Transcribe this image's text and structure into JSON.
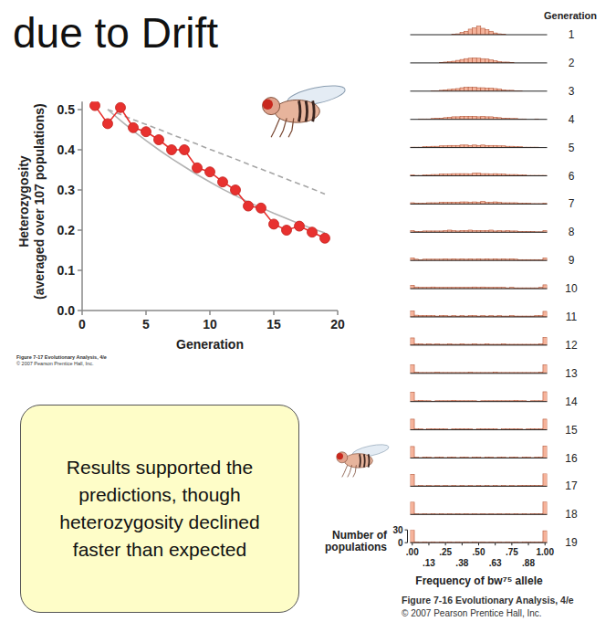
{
  "title": "due to Drift",
  "callout": "Results supported the predictions, though heterozygosity declined faster than expected",
  "chart_data": [
    {
      "type": "line",
      "x_label": "Generation",
      "y_label": [
        "Heterozygosity",
        "(averaged over 107 populations)"
      ],
      "annotations": [
        "Figure 7-17 Evolutionary Analysis, 4/e",
        "© 2007 Pearson Prentice Hall, Inc."
      ],
      "x": [
        1,
        2,
        3,
        4,
        5,
        6,
        7,
        8,
        9,
        10,
        11,
        12,
        13,
        14,
        15,
        16,
        17,
        18,
        19
      ],
      "xlim": [
        0,
        20
      ],
      "xticks": [
        0,
        5,
        10,
        15,
        20
      ],
      "ylim": [
        0,
        0.52
      ],
      "yticks": [
        {
          "value": 0,
          "label": "0.0"
        },
        0.1,
        0.2,
        0.3,
        0.4,
        0.5
      ],
      "series": [
        {
          "color": "#a6a6a6",
          "line_style": "dashed",
          "marker": "none",
          "values": [
            null,
            0.5,
            0.488,
            0.475,
            0.463,
            0.451,
            0.438,
            0.426,
            0.414,
            0.401,
            0.389,
            0.377,
            0.364,
            0.352,
            0.34,
            0.327,
            0.315,
            0.303,
            0.29
          ]
        },
        {
          "color": "#b3b3b3",
          "line_style": "solid",
          "marker": "none",
          "values": [
            null,
            0.5,
            0.473,
            0.447,
            0.423,
            0.4,
            0.378,
            0.358,
            0.338,
            0.32,
            0.302,
            0.286,
            0.27,
            0.256,
            0.242,
            0.229,
            0.216,
            0.204,
            0.193
          ]
        },
        {
          "color": "#e8312f",
          "line_style": "solid",
          "marker": "circle",
          "values": [
            0.51,
            0.465,
            0.505,
            0.455,
            0.445,
            0.425,
            0.4,
            0.4,
            0.355,
            0.345,
            0.32,
            0.3,
            0.26,
            0.255,
            0.215,
            0.2,
            0.21,
            0.195,
            0.18
          ]
        }
      ]
    },
    {
      "type": "bar",
      "series_label": "Generation",
      "x_label": "Frequency of bw⁷⁵ allele",
      "y_label": "Number of populations",
      "annotations": [
        "Figure 7-16 Evolutionary Analysis, 4/e",
        "© 2007 Pearson Prentice Hall, Inc."
      ],
      "color": "#f5b39b",
      "x": [
        0,
        0.03125,
        0.0625,
        0.09375,
        0.125,
        0.15625,
        0.1875,
        0.21875,
        0.25,
        0.28125,
        0.3125,
        0.34375,
        0.375,
        0.40625,
        0.4375,
        0.46875,
        0.5,
        0.53125,
        0.5625,
        0.59375,
        0.625,
        0.65625,
        0.6875,
        0.71875,
        0.75,
        0.78125,
        0.8125,
        0.84375,
        0.875,
        0.90625,
        0.9375,
        0.96875,
        1
      ],
      "xlim": [
        -0.015625,
        1.015625
      ],
      "xticks": [
        {
          "value": 0,
          "label": ".00"
        },
        {
          "value": 0.125,
          "label": ".13"
        },
        {
          "value": 0.25,
          "label": ".25"
        },
        {
          "value": 0.375,
          "label": ".38"
        },
        {
          "value": 0.5,
          "label": ".50"
        },
        {
          "value": 0.625,
          "label": ".63"
        },
        {
          "value": 0.75,
          "label": ".75"
        },
        {
          "value": 0.875,
          "label": ".88"
        },
        {
          "value": 1,
          "label": "1.00"
        }
      ],
      "ylim": [
        0,
        30
      ],
      "yticks": [
        0,
        30
      ],
      "series": [
        {
          "name": "1",
          "values": [
            0,
            0,
            0,
            0,
            0,
            0,
            0,
            0,
            0,
            0,
            1,
            2,
            5,
            8,
            13,
            16,
            20,
            15,
            12,
            8,
            4,
            2,
            1,
            0,
            0,
            0,
            0,
            0,
            0,
            0,
            0,
            0,
            0
          ]
        },
        {
          "name": "2",
          "values": [
            0,
            0,
            0,
            0,
            0,
            0,
            0,
            1,
            2,
            3,
            4,
            6,
            8,
            10,
            11,
            12,
            11,
            10,
            9,
            7,
            5,
            3,
            2,
            2,
            1,
            0,
            0,
            0,
            0,
            0,
            0,
            0,
            0
          ]
        },
        {
          "name": "3",
          "values": [
            0,
            0,
            0,
            0,
            0,
            1,
            1,
            2,
            3,
            4,
            5,
            6,
            8,
            9,
            9,
            9,
            8,
            8,
            7,
            7,
            6,
            5,
            3,
            2,
            2,
            1,
            1,
            0,
            0,
            0,
            0,
            0,
            0
          ]
        },
        {
          "name": "4",
          "values": [
            0,
            0,
            1,
            1,
            1,
            2,
            3,
            3,
            4,
            5,
            6,
            6,
            7,
            7,
            7,
            7,
            6,
            7,
            6,
            6,
            5,
            4,
            3,
            3,
            2,
            2,
            1,
            1,
            0,
            0,
            1,
            0,
            0
          ]
        },
        {
          "name": "5",
          "values": [
            1,
            1,
            1,
            2,
            2,
            3,
            3,
            4,
            4,
            5,
            5,
            5,
            6,
            6,
            5,
            6,
            5,
            6,
            5,
            5,
            5,
            4,
            4,
            3,
            3,
            2,
            2,
            1,
            1,
            1,
            1,
            0,
            0
          ]
        },
        {
          "name": "6",
          "values": [
            2,
            1,
            1,
            2,
            2,
            3,
            3,
            4,
            4,
            4,
            5,
            5,
            5,
            5,
            4,
            6,
            6,
            5,
            5,
            4,
            5,
            4,
            4,
            3,
            3,
            3,
            2,
            2,
            1,
            1,
            1,
            1,
            1
          ]
        },
        {
          "name": "7",
          "values": [
            3,
            2,
            2,
            2,
            3,
            3,
            3,
            4,
            4,
            4,
            4,
            4,
            5,
            5,
            4,
            5,
            4,
            6,
            4,
            4,
            5,
            4,
            3,
            3,
            3,
            3,
            2,
            2,
            2,
            1,
            1,
            1,
            2
          ]
        },
        {
          "name": "8",
          "values": [
            4,
            2,
            2,
            3,
            3,
            3,
            3,
            3,
            4,
            5,
            4,
            3,
            4,
            4,
            5,
            4,
            4,
            4,
            4,
            5,
            3,
            4,
            3,
            4,
            3,
            3,
            2,
            2,
            2,
            2,
            1,
            1,
            4
          ]
        },
        {
          "name": "9",
          "values": [
            6,
            3,
            2,
            3,
            3,
            3,
            3,
            3,
            4,
            3,
            4,
            3,
            4,
            3,
            4,
            3,
            4,
            3,
            4,
            3,
            4,
            3,
            4,
            3,
            4,
            3,
            2,
            2,
            2,
            2,
            2,
            2,
            6
          ]
        },
        {
          "name": "10",
          "values": [
            8,
            4,
            3,
            3,
            3,
            4,
            3,
            3,
            3,
            3,
            3,
            3,
            3,
            3,
            3,
            4,
            3,
            4,
            3,
            3,
            3,
            3,
            3,
            2,
            3,
            2,
            2,
            2,
            2,
            2,
            2,
            3,
            9
          ]
        },
        {
          "name": "11",
          "values": [
            14,
            4,
            3,
            3,
            3,
            3,
            2,
            3,
            3,
            2,
            3,
            2,
            3,
            2,
            3,
            3,
            2,
            3,
            2,
            3,
            2,
            3,
            2,
            2,
            3,
            2,
            2,
            2,
            2,
            2,
            3,
            3,
            13
          ]
        },
        {
          "name": "12",
          "values": [
            17,
            3,
            3,
            2,
            3,
            2,
            3,
            2,
            2,
            3,
            2,
            2,
            3,
            2,
            2,
            3,
            2,
            2,
            3,
            2,
            2,
            2,
            3,
            2,
            2,
            2,
            2,
            2,
            2,
            2,
            2,
            3,
            18
          ]
        },
        {
          "name": "13",
          "values": [
            20,
            3,
            2,
            2,
            2,
            2,
            3,
            2,
            2,
            2,
            2,
            2,
            2,
            2,
            3,
            2,
            2,
            2,
            2,
            2,
            3,
            2,
            2,
            2,
            2,
            2,
            2,
            2,
            2,
            2,
            2,
            3,
            20
          ]
        },
        {
          "name": "14",
          "values": [
            22,
            2,
            3,
            2,
            2,
            1,
            2,
            2,
            2,
            2,
            3,
            2,
            2,
            2,
            2,
            2,
            1,
            2,
            2,
            2,
            2,
            2,
            2,
            2,
            2,
            3,
            2,
            2,
            1,
            2,
            2,
            2,
            23
          ]
        },
        {
          "name": "15",
          "values": [
            25,
            2,
            2,
            1,
            2,
            2,
            2,
            2,
            2,
            1,
            2,
            2,
            2,
            2,
            2,
            1,
            2,
            2,
            2,
            2,
            2,
            1,
            2,
            2,
            2,
            2,
            2,
            1,
            2,
            2,
            2,
            2,
            25
          ]
        },
        {
          "name": "16",
          "values": [
            27,
            2,
            1,
            2,
            2,
            1,
            2,
            2,
            1,
            2,
            2,
            1,
            2,
            2,
            1,
            2,
            2,
            1,
            2,
            2,
            1,
            2,
            2,
            1,
            2,
            2,
            1,
            2,
            2,
            1,
            2,
            2,
            28
          ]
        },
        {
          "name": "17",
          "values": [
            28,
            1,
            2,
            1,
            2,
            1,
            2,
            1,
            2,
            1,
            2,
            1,
            2,
            1,
            2,
            1,
            2,
            1,
            2,
            1,
            2,
            1,
            2,
            1,
            2,
            1,
            2,
            2,
            2,
            2,
            2,
            2,
            30
          ]
        },
        {
          "name": "18",
          "values": [
            29,
            2,
            1,
            2,
            1,
            2,
            1,
            2,
            1,
            2,
            1,
            2,
            1,
            2,
            1,
            2,
            1,
            2,
            1,
            2,
            1,
            2,
            1,
            2,
            1,
            2,
            1,
            2,
            1,
            2,
            2,
            2,
            30
          ]
        },
        {
          "name": "19",
          "values": [
            30,
            2,
            1,
            2,
            1,
            2,
            1,
            2,
            1,
            2,
            1,
            2,
            1,
            2,
            1,
            2,
            1,
            2,
            1,
            2,
            1,
            2,
            1,
            2,
            1,
            2,
            1,
            2,
            2,
            2,
            2,
            2,
            28
          ]
        }
      ]
    }
  ]
}
